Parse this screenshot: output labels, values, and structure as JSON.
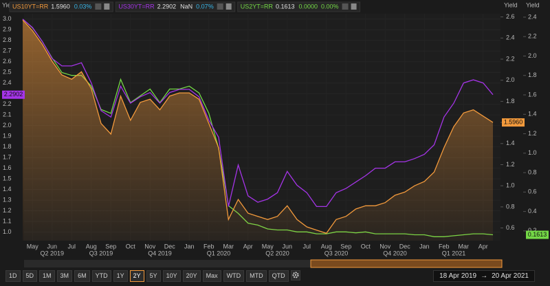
{
  "chart_data": {
    "type": "line",
    "y_label": "Yield",
    "y2_label": "Yield",
    "y3_label": "Yield",
    "categories": [
      null,
      "May",
      null,
      "Jun",
      null,
      "Jul",
      null,
      "Aug",
      null,
      "Sep",
      null,
      "Oct",
      null,
      "Nov",
      null,
      "Dec",
      null,
      "Jan",
      null,
      "Feb",
      null,
      "Mar",
      null,
      "Apr",
      null,
      "May",
      null,
      "Jun",
      null,
      "Jul",
      null,
      "Aug",
      null,
      "Sep",
      null,
      "Oct",
      null,
      "Nov",
      null,
      "Dec",
      null,
      "Jan",
      null,
      "Feb",
      null,
      "Mar",
      null,
      "Apr",
      null
    ],
    "quarters": [
      null,
      null,
      null,
      "Q2 2019",
      null,
      null,
      null,
      null,
      "Q3 2019",
      null,
      null,
      null,
      null,
      null,
      "Q4 2019",
      null,
      null,
      null,
      null,
      null,
      "Q1 2020",
      null,
      null,
      null,
      null,
      null,
      "Q2 2020",
      null,
      null,
      null,
      null,
      null,
      "Q3 2020",
      null,
      null,
      null,
      null,
      null,
      "Q4 2020",
      null,
      null,
      null,
      null,
      null,
      "Q1 2021",
      null,
      null,
      null,
      null
    ],
    "ylim": [
      0.92,
      3.05
    ],
    "yticks": [
      {
        "value": 1,
        "label": "1.0"
      },
      1.1,
      1.2,
      1.3,
      1.4,
      1.5,
      1.6,
      1.7,
      1.8,
      1.9,
      {
        "value": 2,
        "label": "2.0"
      },
      2.1,
      2.2,
      2.3,
      2.4,
      2.5,
      2.6,
      2.7,
      2.8,
      2.9,
      {
        "value": 3,
        "label": "3.0"
      }
    ],
    "y2lim": [
      0.48,
      2.63
    ],
    "y2ticks": [
      0.6,
      0.8,
      {
        "value": 1,
        "label": "1.0"
      },
      1.2,
      1.4,
      1.6,
      1.8,
      {
        "value": 2,
        "label": "2.0"
      },
      2.2,
      2.4,
      2.6
    ],
    "y3lim": [
      0.1,
      2.435
    ],
    "y3ticks": [
      0.2,
      0.4,
      0.6,
      0.8,
      {
        "value": 1,
        "label": "1.0"
      },
      1.2,
      1.4,
      1.6,
      1.8,
      {
        "value": 2,
        "label": "2.0"
      },
      2.2,
      2.4
    ],
    "grid": true,
    "series": [
      {
        "name": "US10YT=RR",
        "color": "#f39a3c",
        "axis": "y2",
        "area": true,
        "last": "1.5960",
        "changes": [
          "0.03%"
        ],
        "change_color": "#38b6e8",
        "values": [
          2.57,
          2.47,
          2.34,
          2.18,
          2.05,
          2.01,
          2.08,
          1.92,
          1.59,
          1.49,
          1.85,
          1.62,
          1.79,
          1.82,
          1.72,
          1.85,
          1.88,
          1.88,
          1.82,
          1.59,
          1.36,
          0.68,
          0.87,
          0.74,
          0.71,
          0.68,
          0.71,
          0.81,
          0.68,
          0.61,
          0.58,
          0.55,
          0.68,
          0.71,
          0.78,
          0.81,
          0.81,
          0.84,
          0.91,
          0.94,
          1.0,
          1.04,
          1.13,
          1.36,
          1.56,
          1.69,
          1.72,
          1.66,
          1.6
        ]
      },
      {
        "name": "US30YT=RR",
        "color": "#a534e8",
        "axis": "y",
        "area": false,
        "last": "2.2902",
        "changes": [
          "NaN",
          "0.07%"
        ],
        "change_color": "#38b6e8",
        "values": [
          3.0,
          2.92,
          2.79,
          2.63,
          2.56,
          2.56,
          2.59,
          2.4,
          2.14,
          2.08,
          2.37,
          2.21,
          2.27,
          2.31,
          2.21,
          2.31,
          2.34,
          2.34,
          2.27,
          2.05,
          1.89,
          1.24,
          1.63,
          1.34,
          1.28,
          1.31,
          1.37,
          1.57,
          1.44,
          1.37,
          1.24,
          1.24,
          1.37,
          1.41,
          1.47,
          1.53,
          1.6,
          1.6,
          1.66,
          1.66,
          1.69,
          1.73,
          1.82,
          2.08,
          2.21,
          2.4,
          2.43,
          2.4,
          2.29
        ]
      },
      {
        "name": "US2YT=RR",
        "color": "#74d846",
        "axis": "y3",
        "area": false,
        "last": "0.1613",
        "changes": [
          "0.0000",
          "0.00%"
        ],
        "change_color": "#74d846",
        "values": [
          2.38,
          2.29,
          2.15,
          1.98,
          1.83,
          1.8,
          1.8,
          1.69,
          1.45,
          1.41,
          1.76,
          1.52,
          1.59,
          1.66,
          1.52,
          1.66,
          1.66,
          1.69,
          1.62,
          1.41,
          1.05,
          0.46,
          0.38,
          0.28,
          0.26,
          0.22,
          0.21,
          0.21,
          0.19,
          0.19,
          0.17,
          0.17,
          0.19,
          0.19,
          0.18,
          0.19,
          0.17,
          0.17,
          0.17,
          0.17,
          0.16,
          0.16,
          0.14,
          0.14,
          0.15,
          0.16,
          0.17,
          0.17,
          0.16
        ]
      }
    ]
  },
  "toolbar": {
    "buttons": [
      "1D",
      "5D",
      "1M",
      "3M",
      "6M",
      "YTD",
      "1Y",
      "2Y",
      "5Y",
      "10Y",
      "20Y",
      "Max",
      "WTD",
      "MTD",
      "QTD"
    ],
    "active": "2Y",
    "date_from": "18 Apr 2019",
    "arrow": "→",
    "date_to": "20 Apr 2021"
  }
}
